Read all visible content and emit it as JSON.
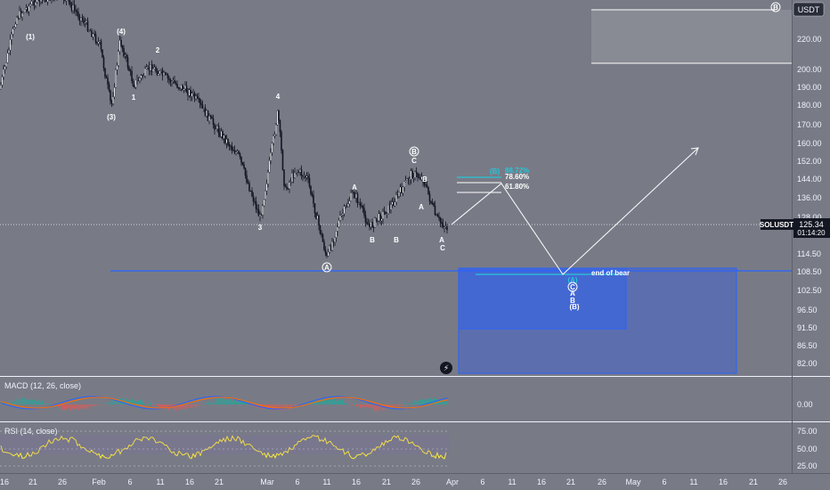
{
  "symbol_badge": "USDT",
  "panels": {
    "macd_label": "MACD (12, 26, close)",
    "rsi_label": "RSI (14, close)"
  },
  "price_tag": {
    "symbol": "SOLUSDT",
    "price": "125.34",
    "countdown": "01:14:20"
  },
  "annotations": {
    "end_of_bear": "end of bear",
    "fib_8872": "88.72%",
    "fib_7860": "78.60%",
    "fib_6180": "61.80%"
  },
  "chart_data": {
    "type": "candlestick",
    "y_ticks": [
      "220.00",
      "200.00",
      "190.00",
      "180.00",
      "170.00",
      "160.00",
      "152.00",
      "144.00",
      "136.00",
      "128.00",
      "114.50",
      "108.50",
      "102.50",
      "96.50",
      "91.50",
      "86.50",
      "82.00"
    ],
    "x_ticks": [
      "16",
      "21",
      "26",
      "Feb",
      "6",
      "11",
      "16",
      "21",
      "Mar",
      "6",
      "11",
      "16",
      "21",
      "26",
      "Apr",
      "6",
      "11",
      "16",
      "21",
      "26",
      "May",
      "6",
      "11",
      "16",
      "21",
      "26"
    ],
    "macd_ticks": [
      "0.00"
    ],
    "rsi_ticks": [
      "75.00",
      "50.00",
      "25.00"
    ],
    "wave_labels": [
      "(1)",
      "(4)",
      "2",
      "1",
      "(3)",
      "4",
      "3",
      "A",
      "B",
      "A",
      "B",
      "C",
      "B",
      "A",
      "C",
      "(A)",
      "A",
      "B",
      "(B)",
      "(C)",
      "C",
      "5",
      "(5)",
      "A"
    ],
    "levels": {
      "last_price": 125.34,
      "end_of_bear": 108.5
    }
  }
}
